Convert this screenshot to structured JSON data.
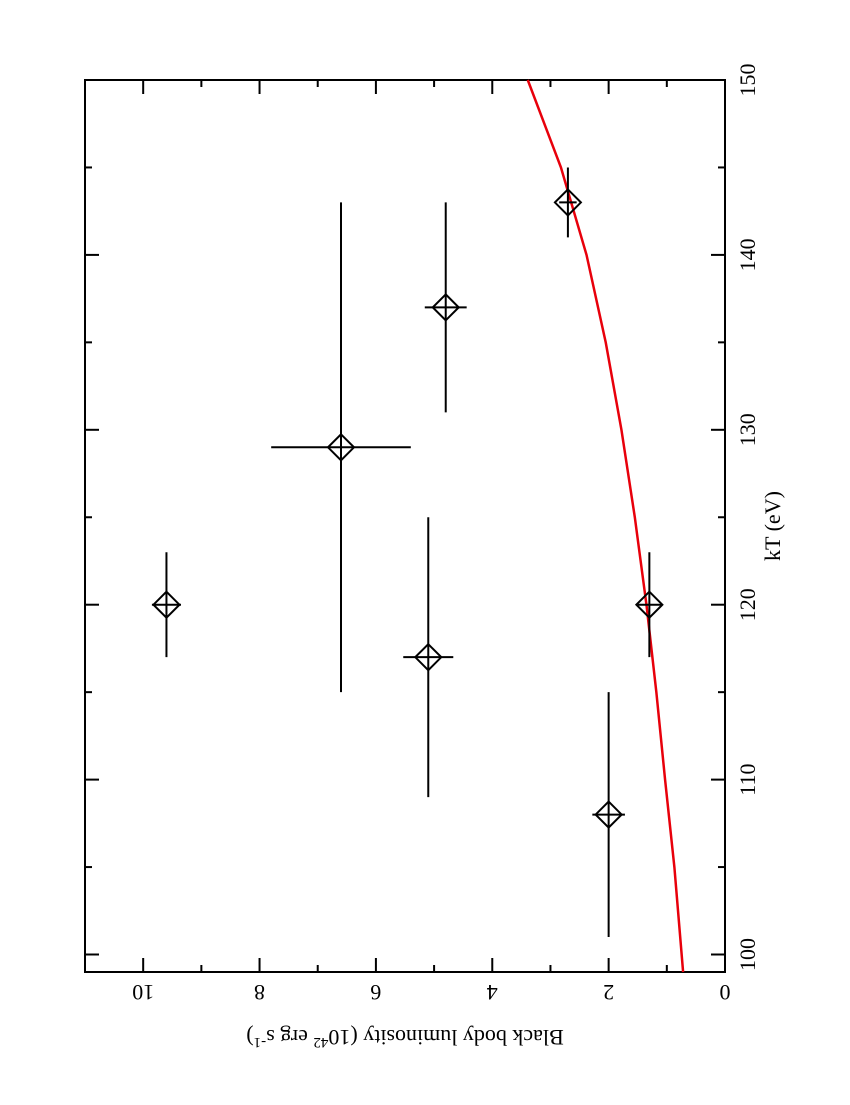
{
  "chart_data": {
    "type": "scatter",
    "xlabel": "kT (eV)",
    "ylabel": [
      "Black body luminosity (10",
      "42",
      " erg s",
      "-1",
      ")"
    ],
    "x": [
      120,
      129,
      117,
      137,
      108,
      120,
      143
    ],
    "series": [
      {
        "color": "#000000",
        "marker": "diamond",
        "values": [
          9.6,
          6.6,
          5.1,
          4.8,
          2.0,
          1.3,
          2.7
        ],
        "xerr": [
          3,
          14,
          8,
          6,
          7,
          3,
          2
        ],
        "yerr": [
          0.25,
          1.2,
          0.43,
          0.36,
          0.28,
          0.2,
          0.15
        ]
      }
    ],
    "fit": {
      "color": "#e8000b",
      "x": [
        99,
        105,
        110,
        115,
        120,
        125,
        130,
        135,
        140,
        145,
        150
      ],
      "values": [
        0.72,
        0.87,
        1.03,
        1.18,
        1.35,
        1.55,
        1.78,
        2.05,
        2.38,
        2.82,
        3.39
      ]
    },
    "xlim": [
      99,
      150
    ],
    "ylim": [
      0,
      11
    ],
    "xticks": [
      100,
      110,
      120,
      130,
      140,
      150
    ],
    "yticks": [
      0,
      2,
      4,
      6,
      8,
      10
    ]
  }
}
